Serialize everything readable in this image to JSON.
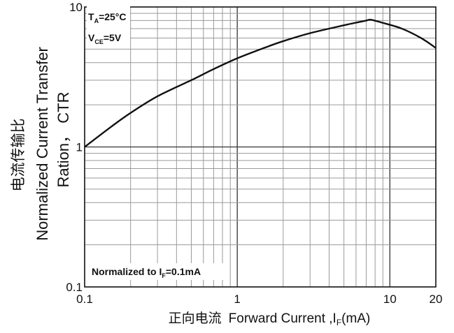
{
  "chart_data": {
    "type": "line",
    "scale": {
      "x": "log",
      "y": "log"
    },
    "xlim": [
      0.1,
      20
    ],
    "ylim": [
      0.1,
      10
    ],
    "x_ticks": [
      {
        "value": 0.1,
        "label": "0.1"
      },
      {
        "value": 1,
        "label": "1"
      },
      {
        "value": 10,
        "label": "10"
      },
      {
        "value": 20,
        "label": "20"
      }
    ],
    "y_ticks": [
      {
        "value": 0.1,
        "label": "0.1"
      },
      {
        "value": 1,
        "label": "1"
      },
      {
        "value": 10,
        "label": "10"
      }
    ],
    "x_minor_grid": [
      0.2,
      0.3,
      0.4,
      0.5,
      0.6,
      0.7,
      0.8,
      0.9,
      2,
      3,
      4,
      5,
      6,
      7,
      8,
      9
    ],
    "y_minor_grid": [
      0.2,
      0.3,
      0.4,
      0.5,
      0.6,
      0.7,
      0.8,
      0.9,
      2,
      3,
      4,
      5,
      6,
      7,
      8,
      9
    ],
    "grid": true,
    "xlabel": {
      "cn": "正向电流",
      "en": "Forward Current ,I",
      "sub": "F",
      "unit": "(mA)"
    },
    "ylabel": {
      "cn": "电流传输比",
      "line1": "Normalized Current Transfer",
      "line2": "Ration， CTR"
    },
    "annotations": [
      {
        "main": "T",
        "sub": "A",
        "rest": "=25°C"
      },
      {
        "main": "V",
        "sub": "CE",
        "rest": "=5V"
      }
    ],
    "note": {
      "main": "Normalized to I",
      "sub": "F",
      "rest": "=0.1mA"
    },
    "series": [
      {
        "color": "#111111",
        "points": [
          [
            0.1,
            1.0
          ],
          [
            0.15,
            1.4
          ],
          [
            0.2,
            1.75
          ],
          [
            0.3,
            2.3
          ],
          [
            0.5,
            3.0
          ],
          [
            0.7,
            3.6
          ],
          [
            1.0,
            4.3
          ],
          [
            1.5,
            5.1
          ],
          [
            2.0,
            5.7
          ],
          [
            3.0,
            6.5
          ],
          [
            5.0,
            7.4
          ],
          [
            7.0,
            8.0
          ],
          [
            7.5,
            8.1
          ],
          [
            9.0,
            7.7
          ],
          [
            12.0,
            7.0
          ],
          [
            16.0,
            6.0
          ],
          [
            20.0,
            5.1
          ]
        ]
      }
    ]
  }
}
